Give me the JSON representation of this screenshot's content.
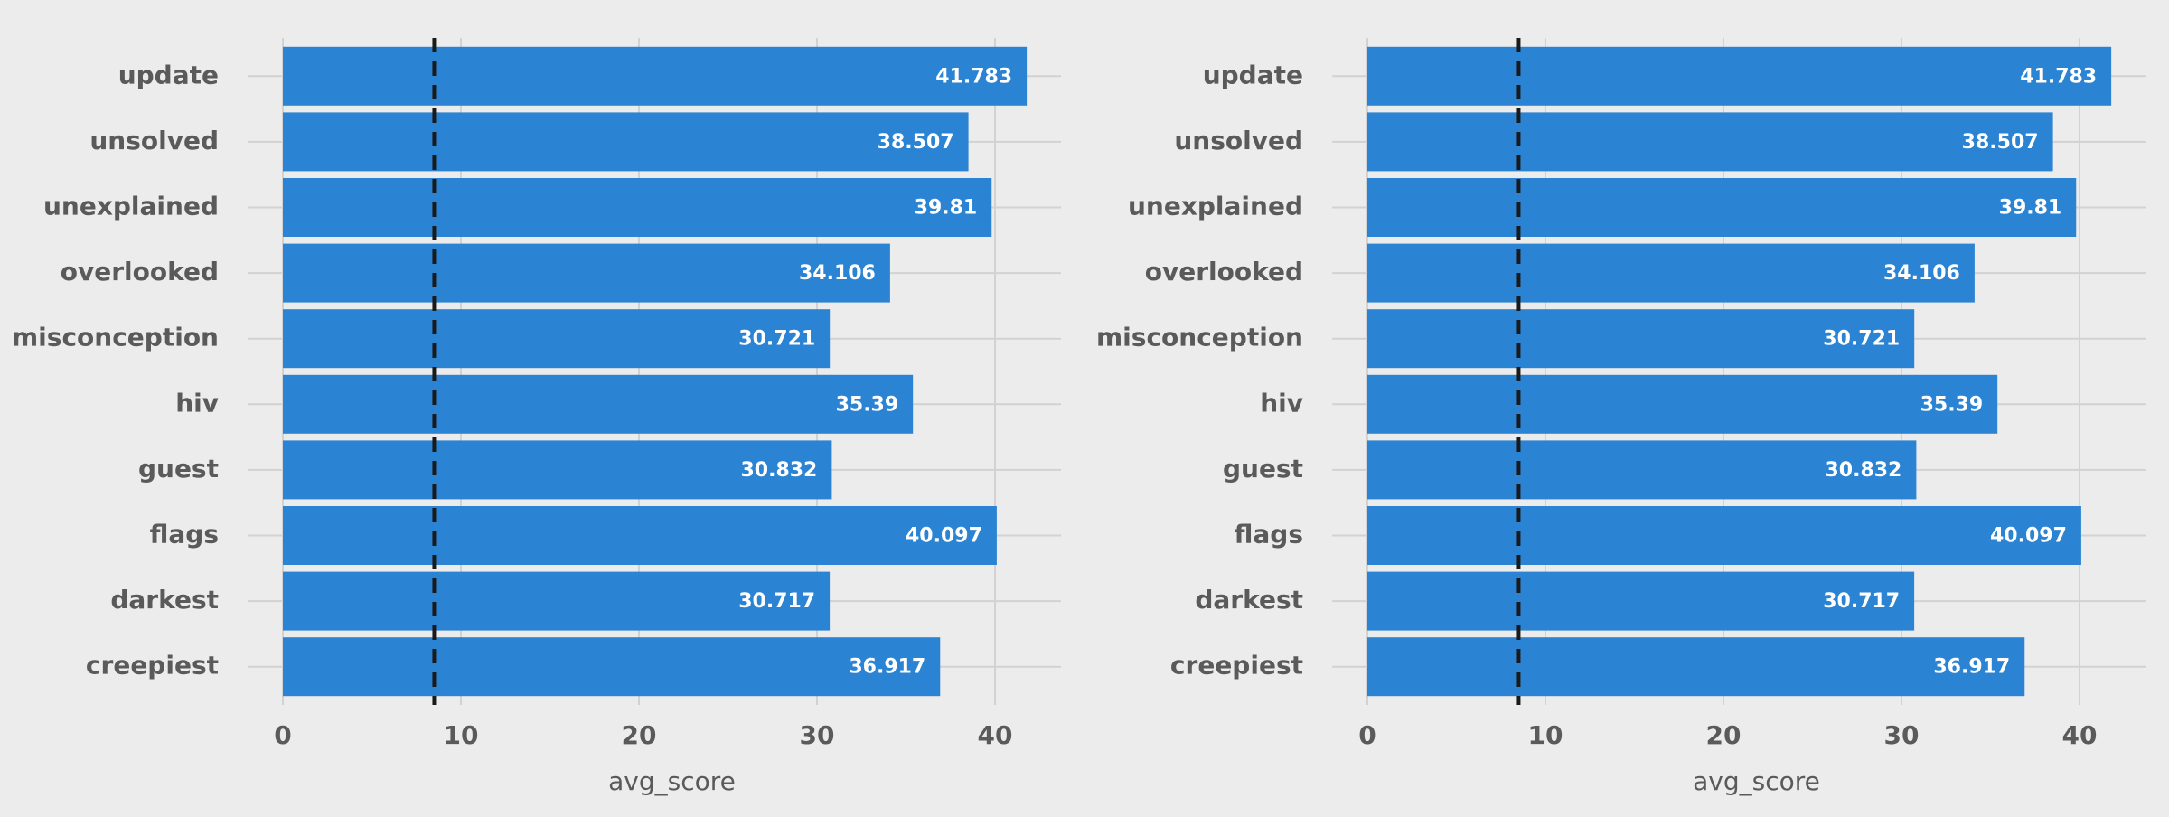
{
  "chart_data": [
    {
      "type": "bar",
      "orientation": "horizontal",
      "categories": [
        "update",
        "unsolved",
        "unexplained",
        "overlooked",
        "misconception",
        "hiv",
        "guest",
        "flags",
        "darkest",
        "creepiest"
      ],
      "values": [
        41.783,
        38.507,
        39.81,
        34.106,
        30.721,
        35.39,
        30.832,
        40.097,
        30.717,
        36.917
      ],
      "data_labels": [
        "41.783",
        "38.507",
        "39.81",
        "34.106",
        "30.721",
        "35.39",
        "30.832",
        "40.097",
        "30.717",
        "36.917"
      ],
      "xlabel": "avg_score",
      "ylabel": "",
      "xlim": [
        0,
        44
      ],
      "xticks": [
        "0",
        "10",
        "20",
        "30",
        "40"
      ],
      "reference_line": {
        "value": 8.5,
        "style": "dashed",
        "color": "#1a1a1a"
      },
      "bar_color": "#2b83d3",
      "grid": true,
      "legend": "none"
    },
    {
      "type": "bar",
      "orientation": "horizontal",
      "categories": [
        "update",
        "unsolved",
        "unexplained",
        "overlooked",
        "misconception",
        "hiv",
        "guest",
        "flags",
        "darkest",
        "creepiest"
      ],
      "values": [
        41.783,
        38.507,
        39.81,
        34.106,
        30.721,
        35.39,
        30.832,
        40.097,
        30.717,
        36.917
      ],
      "data_labels": [
        "41.783",
        "38.507",
        "39.81",
        "34.106",
        "30.721",
        "35.39",
        "30.832",
        "40.097",
        "30.717",
        "36.917"
      ],
      "xlabel": "avg_score",
      "ylabel": "",
      "xlim": [
        0,
        44
      ],
      "xticks": [
        "0",
        "10",
        "20",
        "30",
        "40"
      ],
      "reference_line": {
        "value": 8.5,
        "style": "dashed",
        "color": "#1a1a1a"
      },
      "bar_color": "#2b83d3",
      "grid": true,
      "legend": "none"
    }
  ],
  "background_color": "#ececec"
}
